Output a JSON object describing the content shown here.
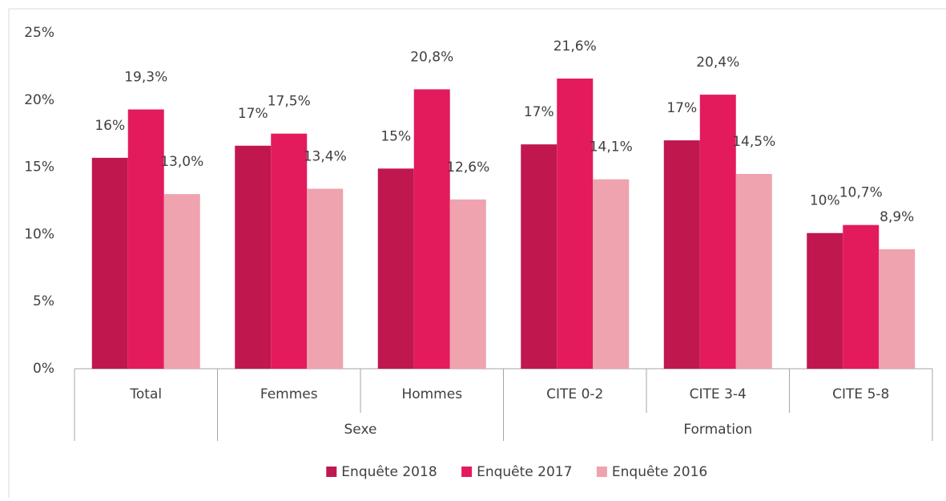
{
  "chart_data": {
    "type": "bar",
    "categories": [
      "Total",
      "Femmes",
      "Hommes",
      "CITE 0-2",
      "CITE 3-4",
      "CITE 5-8"
    ],
    "group_labels": [
      null,
      "Sexe",
      "Sexe",
      "Formation",
      "Formation",
      "Formation"
    ],
    "series": [
      {
        "name": "Enquête 2018",
        "color": "#c0174f",
        "values": [
          15.7,
          16.6,
          14.9,
          16.7,
          17.0,
          10.1
        ],
        "value_labels": [
          "16%",
          "17%",
          "15%",
          "17%",
          "17%",
          "10%"
        ]
      },
      {
        "name": "Enquête 2017",
        "color": "#e31b5d",
        "values": [
          19.3,
          17.5,
          20.8,
          21.6,
          20.4,
          10.7
        ],
        "value_labels": [
          "19,3%",
          "17,5%",
          "20,8%",
          "21,6%",
          "20,4%",
          "10,7%"
        ]
      },
      {
        "name": "Enquête 2016",
        "color": "#eea3ae",
        "values": [
          13.0,
          13.4,
          12.6,
          14.1,
          14.5,
          8.9
        ],
        "value_labels": [
          "13,0%",
          "13,4%",
          "12,6%",
          "14,1%",
          "14,5%",
          "8,9%"
        ]
      }
    ],
    "ylim": [
      0,
      25
    ],
    "yticks": [
      {
        "value": 0,
        "label": "0%"
      },
      {
        "value": 5,
        "label": "5%"
      },
      {
        "value": 10,
        "label": "10%"
      },
      {
        "value": 15,
        "label": "15%"
      },
      {
        "value": 20,
        "label": "20%"
      },
      {
        "value": 25,
        "label": "25%"
      }
    ],
    "grid": false,
    "legend": "bottom"
  }
}
